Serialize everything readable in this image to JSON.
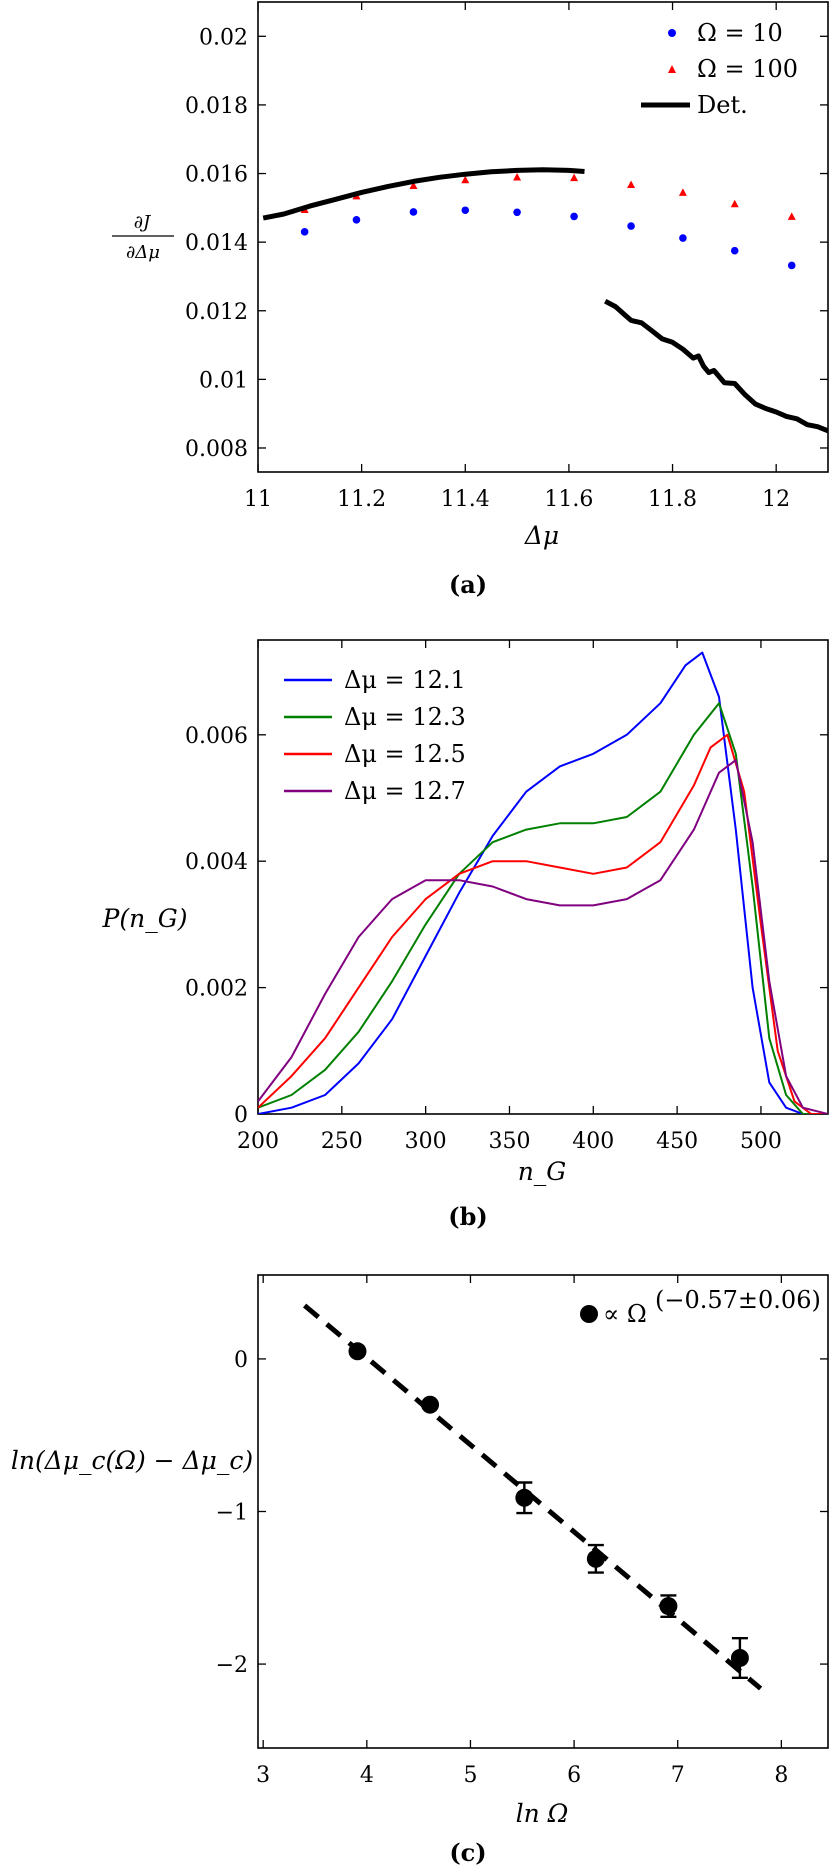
{
  "chart_data": [
    {
      "panel": "(a)",
      "type": "scatter",
      "xlabel": "Δμ",
      "ylabel": {
        "num": "∂J",
        "den": "∂Δμ"
      },
      "xlim": [
        11.0,
        12.1
      ],
      "ylim": [
        0.0073,
        0.021
      ],
      "xticks": [
        11,
        11.2,
        11.4,
        11.6,
        11.8,
        12
      ],
      "xtick_labels": [
        "11",
        "11.2",
        "11.4",
        "11.6",
        "11.8",
        "12"
      ],
      "yticks": [
        0.008,
        0.01,
        0.012,
        0.014,
        0.016,
        0.018,
        0.02
      ],
      "ytick_labels": [
        "0.008",
        "0.01",
        "0.012",
        "0.014",
        "0.016",
        "0.018",
        "0.02"
      ],
      "legend": "top-right",
      "series": [
        {
          "name": "Ω = 10",
          "kind": "markers",
          "marker": "circle",
          "color": "#0000ff",
          "x": [
            11.09,
            11.19,
            11.3,
            11.4,
            11.5,
            11.61,
            11.72,
            11.82,
            11.92,
            12.03
          ],
          "y": [
            0.0143,
            0.01465,
            0.01488,
            0.01493,
            0.01487,
            0.01475,
            0.01447,
            0.01412,
            0.01375,
            0.01332
          ]
        },
        {
          "name": "Ω = 100",
          "kind": "markers",
          "marker": "triangle",
          "color": "#ff0000",
          "x": [
            11.09,
            11.19,
            11.3,
            11.4,
            11.5,
            11.61,
            11.72,
            11.82,
            11.92,
            12.03
          ],
          "y": [
            0.01495,
            0.01535,
            0.01565,
            0.01582,
            0.0159,
            0.01588,
            0.01568,
            0.01545,
            0.01512,
            0.01475
          ]
        },
        {
          "name": "Det.",
          "kind": "line",
          "color": "#000000",
          "x": [
            11.01,
            11.05,
            11.1,
            11.15,
            11.2,
            11.25,
            11.3,
            11.35,
            11.4,
            11.45,
            11.5,
            11.55,
            11.6,
            11.63
          ],
          "y": [
            0.0147,
            0.01482,
            0.01505,
            0.01525,
            0.01545,
            0.01562,
            0.01577,
            0.01589,
            0.01598,
            0.01605,
            0.01609,
            0.01611,
            0.01609,
            0.01606
          ]
        },
        {
          "name": "Det.",
          "kind": "line",
          "color": "#000000",
          "legend": false,
          "x": [
            11.67,
            11.69,
            11.71,
            11.72,
            11.74,
            11.76,
            11.78,
            11.8,
            11.82,
            11.84,
            11.85,
            11.86,
            11.87,
            11.88,
            11.9,
            11.92,
            11.94,
            11.96,
            11.98,
            12.0,
            12.02,
            12.04,
            12.06,
            12.08,
            12.1
          ],
          "y": [
            0.01228,
            0.01212,
            0.01185,
            0.01172,
            0.01165,
            0.01142,
            0.01118,
            0.01108,
            0.01088,
            0.01062,
            0.01068,
            0.01038,
            0.0102,
            0.01026,
            0.0099,
            0.00988,
            0.00955,
            0.00928,
            0.00915,
            0.00905,
            0.00892,
            0.00885,
            0.00868,
            0.00862,
            0.0085
          ]
        }
      ]
    },
    {
      "panel": "(b)",
      "type": "line",
      "xlabel": "n_G",
      "ylabel": "P(n_G)",
      "xlim": [
        200,
        540
      ],
      "ylim": [
        0,
        0.0075
      ],
      "xticks": [
        200,
        250,
        300,
        350,
        400,
        450,
        500
      ],
      "xtick_labels": [
        "200",
        "250",
        "300",
        "350",
        "400",
        "450",
        "500"
      ],
      "yticks": [
        0,
        0.002,
        0.004,
        0.006
      ],
      "ytick_labels": [
        "0",
        "0.002",
        "0.004",
        "0.006"
      ],
      "legend": "top-left",
      "series": [
        {
          "name": "Δμ = 12.1",
          "color": "#0000ff",
          "x": [
            200,
            220,
            240,
            260,
            280,
            300,
            320,
            340,
            360,
            380,
            400,
            420,
            440,
            455,
            465,
            475,
            485,
            495,
            505,
            515,
            525,
            540
          ],
          "y": [
            0.0,
            0.0001,
            0.0003,
            0.0008,
            0.0015,
            0.0025,
            0.0035,
            0.0044,
            0.0051,
            0.0055,
            0.0057,
            0.006,
            0.0065,
            0.0071,
            0.0073,
            0.0066,
            0.0045,
            0.002,
            0.0005,
            0.0001,
            0.0,
            0.0
          ]
        },
        {
          "name": "Δμ = 12.3",
          "color": "#008000",
          "x": [
            200,
            220,
            240,
            260,
            280,
            300,
            320,
            340,
            360,
            380,
            400,
            420,
            440,
            460,
            475,
            485,
            495,
            505,
            515,
            525,
            540
          ],
          "y": [
            0.0001,
            0.0003,
            0.0007,
            0.0013,
            0.0021,
            0.003,
            0.0038,
            0.0043,
            0.0045,
            0.0046,
            0.0046,
            0.0047,
            0.0051,
            0.006,
            0.0065,
            0.0057,
            0.0036,
            0.0012,
            0.0003,
            0.0,
            0.0
          ]
        },
        {
          "name": "Δμ = 12.5",
          "color": "#ff0000",
          "x": [
            200,
            220,
            240,
            260,
            280,
            300,
            320,
            340,
            360,
            380,
            400,
            420,
            440,
            460,
            470,
            480,
            490,
            500,
            510,
            520,
            530,
            540
          ],
          "y": [
            0.0001,
            0.0006,
            0.0012,
            0.002,
            0.0028,
            0.0034,
            0.0038,
            0.004,
            0.004,
            0.0039,
            0.0038,
            0.0039,
            0.0043,
            0.0052,
            0.0058,
            0.006,
            0.0051,
            0.003,
            0.001,
            0.0002,
            0.0,
            0.0
          ]
        },
        {
          "name": "Δμ = 12.7",
          "color": "#800080",
          "x": [
            200,
            220,
            240,
            260,
            280,
            300,
            320,
            340,
            360,
            380,
            400,
            420,
            440,
            460,
            475,
            485,
            495,
            505,
            515,
            525,
            540
          ],
          "y": [
            0.0002,
            0.0009,
            0.0019,
            0.0028,
            0.0034,
            0.0037,
            0.0037,
            0.0036,
            0.0034,
            0.0033,
            0.0033,
            0.0034,
            0.0037,
            0.0045,
            0.0054,
            0.0056,
            0.0043,
            0.0021,
            0.0006,
            0.0001,
            0.0
          ]
        }
      ]
    },
    {
      "panel": "(c)",
      "type": "scatter",
      "xlabel": "ln Ω",
      "ylabel": "ln(Δμ_c(Ω) − Δμ_c)",
      "xlim": [
        2.95,
        8.45
      ],
      "ylim": [
        -2.55,
        0.55
      ],
      "xticks": [
        3,
        4,
        5,
        6,
        7,
        8
      ],
      "xtick_labels": [
        "3",
        "4",
        "5",
        "6",
        "7",
        "8"
      ],
      "yticks": [
        -2,
        -1,
        0
      ],
      "ytick_labels": [
        "−2",
        "−1",
        "0"
      ],
      "legend": "top-right",
      "legend_label": "∝ Ω",
      "legend_exponent": "(−0.57±0.06)",
      "series": [
        {
          "name": "∝ Ω(−0.57±0.06)",
          "kind": "markers",
          "marker": "circle",
          "color": "#000000",
          "x": [
            3.91,
            4.61,
            5.52,
            6.21,
            6.91,
            7.6
          ],
          "y": [
            0.05,
            -0.3,
            -0.91,
            -1.31,
            -1.62,
            -1.96
          ],
          "yerr": [
            0.0,
            0.0,
            0.1,
            0.09,
            0.07,
            0.13
          ]
        },
        {
          "name": "fit",
          "kind": "line",
          "dash": "dashed",
          "color": "#000000",
          "legend": false,
          "x": [
            3.4,
            7.8
          ],
          "y": [
            0.35,
            -2.16
          ]
        }
      ]
    }
  ]
}
